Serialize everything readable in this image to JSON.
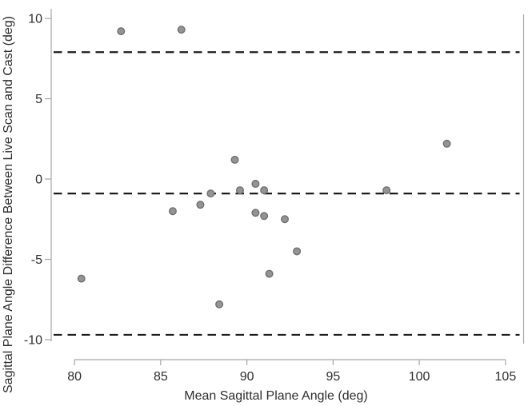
{
  "chart_data": {
    "type": "scatter",
    "title": "",
    "xlabel": "Mean Sagittal Plane Angle (deg)",
    "ylabel": "Sagittal Plane Angle Difference Between Live Scan and Cast (deg)",
    "xlim": [
      78.65,
      106.05
    ],
    "ylim": [
      -10.1,
      10.6
    ],
    "x_ticks": [
      80,
      85,
      90,
      95,
      100,
      105
    ],
    "y_ticks": [
      10,
      5,
      0,
      -5,
      -10
    ],
    "grid": false,
    "legend": null,
    "points": [
      {
        "x": 80.4,
        "y": -6.2
      },
      {
        "x": 82.7,
        "y": 9.2
      },
      {
        "x": 85.7,
        "y": -2.0
      },
      {
        "x": 86.2,
        "y": 9.3
      },
      {
        "x": 87.3,
        "y": -1.6
      },
      {
        "x": 87.9,
        "y": -0.9
      },
      {
        "x": 88.4,
        "y": -7.8
      },
      {
        "x": 89.3,
        "y": 1.2
      },
      {
        "x": 89.6,
        "y": -0.7
      },
      {
        "x": 90.5,
        "y": -0.3
      },
      {
        "x": 90.5,
        "y": -2.1
      },
      {
        "x": 91.0,
        "y": -0.7
      },
      {
        "x": 91.0,
        "y": -2.3
      },
      {
        "x": 91.3,
        "y": -5.9
      },
      {
        "x": 92.2,
        "y": -2.5
      },
      {
        "x": 92.9,
        "y": -4.5
      },
      {
        "x": 98.1,
        "y": -0.7
      },
      {
        "x": 101.6,
        "y": 2.2
      }
    ],
    "reference_lines": [
      {
        "name": "upper-limit-of-agreement",
        "y": 7.9,
        "style": "dashed"
      },
      {
        "name": "mean-difference",
        "y": -0.9,
        "style": "dashed"
      },
      {
        "name": "lower-limit-of-agreement",
        "y": -9.7,
        "style": "dashed"
      }
    ],
    "colors": {
      "marker_fill": "#949494",
      "marker_stroke": "#6f6f6f",
      "axis": "#a6a6a6",
      "text": "#2e2e2e",
      "dashed_line": "#1c1c1c",
      "background": "#ffffff"
    }
  }
}
